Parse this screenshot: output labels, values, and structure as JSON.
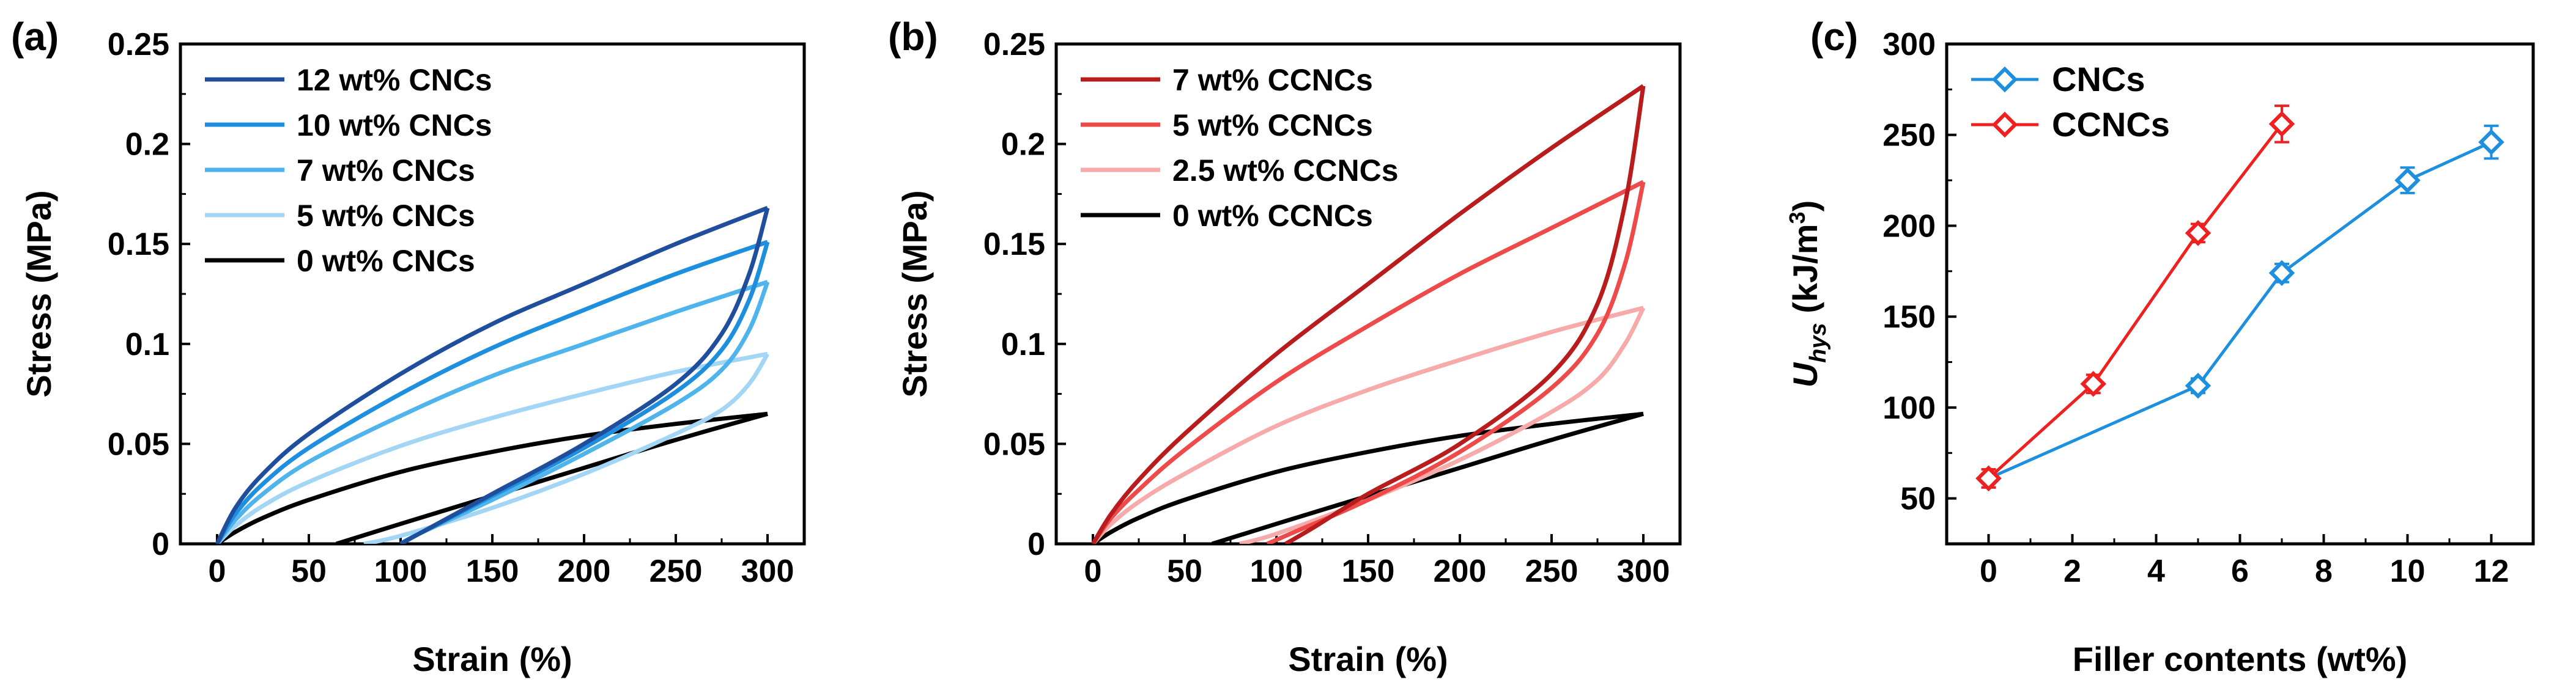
{
  "panels": [
    {
      "id": "a",
      "panel_label": "(a)",
      "chart_data": {
        "type": "line",
        "title": "",
        "xlabel": "Strain (%)",
        "ylabel": "Stress (MPa)",
        "xlim": [
          -20,
          320
        ],
        "ylim": [
          0,
          0.25
        ],
        "xticks": [
          0,
          50,
          100,
          150,
          200,
          250,
          300
        ],
        "yticks": [
          0,
          0.05,
          0.1,
          0.15,
          0.2,
          0.25
        ],
        "ytick_labels": [
          "0",
          "0.05",
          "0.1",
          "0.15",
          "0.2",
          "0.25"
        ],
        "legend_position": "top-left",
        "series": [
          {
            "name": "12 wt% CNCs",
            "color": "#1f4e9c",
            "loading": {
              "x": [
                0,
                10,
                25,
                50,
                100,
                150,
                200,
                250,
                300
              ],
              "y": [
                0,
                0.018,
                0.035,
                0.055,
                0.085,
                0.11,
                0.13,
                0.15,
                0.168
              ]
            },
            "unloading": {
              "x": [
                300,
                290,
                275,
                250,
                200,
                150,
                110,
                100
              ],
              "y": [
                0.168,
                0.135,
                0.105,
                0.08,
                0.05,
                0.025,
                0.005,
                0
              ]
            }
          },
          {
            "name": "10 wt% CNCs",
            "color": "#1e8fdf",
            "loading": {
              "x": [
                0,
                10,
                25,
                50,
                100,
                150,
                200,
                250,
                300
              ],
              "y": [
                0,
                0.015,
                0.03,
                0.048,
                0.075,
                0.098,
                0.117,
                0.135,
                0.151
              ]
            },
            "unloading": {
              "x": [
                300,
                290,
                275,
                250,
                200,
                150,
                110,
                100
              ],
              "y": [
                0.151,
                0.122,
                0.097,
                0.076,
                0.048,
                0.024,
                0.005,
                0
              ]
            }
          },
          {
            "name": "7 wt% CNCs",
            "color": "#4fb4ec",
            "loading": {
              "x": [
                0,
                10,
                25,
                50,
                100,
                150,
                200,
                250,
                300
              ],
              "y": [
                0,
                0.012,
                0.025,
                0.041,
                0.064,
                0.084,
                0.1,
                0.116,
                0.131
              ]
            },
            "unloading": {
              "x": [
                300,
                290,
                275,
                250,
                200,
                150,
                110,
                100
              ],
              "y": [
                0.131,
                0.107,
                0.087,
                0.07,
                0.045,
                0.022,
                0.005,
                0
              ]
            }
          },
          {
            "name": "5 wt% CNCs",
            "color": "#a3d6f5",
            "loading": {
              "x": [
                0,
                10,
                25,
                50,
                100,
                150,
                200,
                250,
                300
              ],
              "y": [
                0,
                0.009,
                0.019,
                0.031,
                0.049,
                0.063,
                0.075,
                0.086,
                0.095
              ]
            },
            "unloading": {
              "x": [
                300,
                290,
                275,
                250,
                200,
                150,
                100,
                80
              ],
              "y": [
                0.095,
                0.08,
                0.067,
                0.055,
                0.035,
                0.018,
                0.004,
                0
              ]
            }
          },
          {
            "name": "0 wt% CNCs",
            "color": "#000000",
            "loading": {
              "x": [
                0,
                10,
                25,
                50,
                100,
                150,
                200,
                250,
                300
              ],
              "y": [
                0,
                0.006,
                0.013,
                0.022,
                0.036,
                0.046,
                0.054,
                0.06,
                0.065
              ]
            },
            "unloading": {
              "x": [
                300,
                250,
                200,
                150,
                100,
                65
              ],
              "y": [
                0.065,
                0.052,
                0.038,
                0.024,
                0.01,
                0
              ]
            }
          }
        ]
      }
    },
    {
      "id": "b",
      "panel_label": "(b)",
      "chart_data": {
        "type": "line",
        "title": "",
        "xlabel": "Strain (%)",
        "ylabel": "Stress (MPa)",
        "xlim": [
          -20,
          320
        ],
        "ylim": [
          0,
          0.25
        ],
        "xticks": [
          0,
          50,
          100,
          150,
          200,
          250,
          300
        ],
        "yticks": [
          0,
          0.05,
          0.1,
          0.15,
          0.2,
          0.25
        ],
        "ytick_labels": [
          "0",
          "0.05",
          "0.1",
          "0.15",
          "0.2",
          "0.25"
        ],
        "legend_position": "top-left",
        "series": [
          {
            "name": "7 wt% CCNCs",
            "color": "#b81c1c",
            "loading": {
              "x": [
                0,
                10,
                25,
                50,
                100,
                150,
                200,
                250,
                300
              ],
              "y": [
                0,
                0.015,
                0.032,
                0.055,
                0.095,
                0.13,
                0.165,
                0.198,
                0.229
              ]
            },
            "unloading": {
              "x": [
                300,
                290,
                275,
                250,
                200,
                150,
                120,
                105
              ],
              "y": [
                0.229,
                0.17,
                0.12,
                0.085,
                0.05,
                0.025,
                0.008,
                0
              ]
            }
          },
          {
            "name": "5 wt% CCNCs",
            "color": "#ee4a4a",
            "loading": {
              "x": [
                0,
                10,
                25,
                50,
                100,
                150,
                200,
                250,
                300
              ],
              "y": [
                0,
                0.013,
                0.027,
                0.047,
                0.081,
                0.109,
                0.135,
                0.158,
                0.181
              ]
            },
            "unloading": {
              "x": [
                300,
                290,
                275,
                250,
                200,
                150,
                110,
                95
              ],
              "y": [
                0.181,
                0.14,
                0.105,
                0.078,
                0.046,
                0.022,
                0.006,
                0
              ]
            }
          },
          {
            "name": "2.5 wt% CCNCs",
            "color": "#f6aaaa",
            "loading": {
              "x": [
                0,
                10,
                25,
                50,
                100,
                150,
                200,
                250,
                300
              ],
              "y": [
                0,
                0.01,
                0.021,
                0.035,
                0.059,
                0.077,
                0.092,
                0.106,
                0.118
              ]
            },
            "unloading": {
              "x": [
                300,
                290,
                275,
                250,
                200,
                150,
                100,
                80
              ],
              "y": [
                0.118,
                0.1,
                0.082,
                0.066,
                0.042,
                0.022,
                0.005,
                0
              ]
            }
          },
          {
            "name": "0 wt% CCNCs",
            "color": "#000000",
            "loading": {
              "x": [
                0,
                10,
                25,
                50,
                100,
                150,
                200,
                250,
                300
              ],
              "y": [
                0,
                0.006,
                0.013,
                0.022,
                0.036,
                0.046,
                0.054,
                0.06,
                0.065
              ]
            },
            "unloading": {
              "x": [
                300,
                250,
                200,
                150,
                100,
                65
              ],
              "y": [
                0.065,
                0.052,
                0.038,
                0.024,
                0.01,
                0
              ]
            }
          }
        ]
      }
    },
    {
      "id": "c",
      "panel_label": "(c)",
      "chart_data": {
        "type": "line",
        "title": "",
        "xlabel": "Filler contents (wt%)",
        "ylabel_main": "U",
        "ylabel_sub": "hys",
        "ylabel_unit_pre": " (kJ/m",
        "ylabel_unit_sup": "3",
        "ylabel_unit_post": ")",
        "xlim": [
          -1,
          13
        ],
        "ylim": [
          25,
          300
        ],
        "xticks": [
          0,
          2,
          4,
          6,
          8,
          10,
          12
        ],
        "yticks": [
          50,
          100,
          150,
          200,
          250,
          300
        ],
        "legend_position": "top-left",
        "markers": "open diamond",
        "series": [
          {
            "name": "CNCs",
            "color": "#1e8fdf",
            "x": [
              0,
              5,
              7,
              10,
              12
            ],
            "y": [
              61,
              112,
              174,
              225,
              246
            ],
            "err": [
              5,
              4,
              5,
              7,
              9
            ]
          },
          {
            "name": "CCNCs",
            "color": "#ee2020",
            "x": [
              0,
              2.5,
              5,
              7
            ],
            "y": [
              61,
              113,
              196,
              256
            ],
            "err": [
              5,
              5,
              5,
              10
            ]
          }
        ]
      }
    }
  ]
}
